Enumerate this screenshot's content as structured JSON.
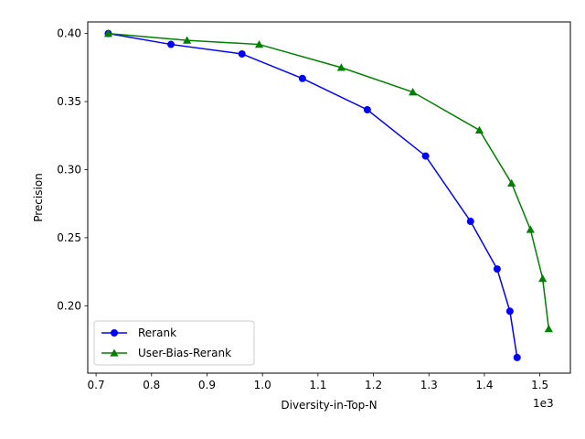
{
  "chart_data": {
    "type": "line",
    "title": "",
    "xlabel": "Diversity-in-Top-N",
    "ylabel": "Precision",
    "x_offset_label": "1e3",
    "xlim": [
      0.685,
      1.555
    ],
    "ylim": [
      0.1505,
      0.4085
    ],
    "xticks": [
      0.7,
      0.8,
      0.9,
      1.0,
      1.1,
      1.2,
      1.3,
      1.4,
      1.5
    ],
    "xtick_labels": [
      "0.7",
      "0.8",
      "0.9",
      "1.0",
      "1.1",
      "1.2",
      "1.3",
      "1.4",
      "1.5"
    ],
    "yticks": [
      0.2,
      0.25,
      0.3,
      0.35,
      0.4
    ],
    "ytick_labels": [
      "0.20",
      "0.25",
      "0.30",
      "0.35",
      "0.40"
    ],
    "grid": false,
    "legend_position": "lower-left",
    "series": [
      {
        "name": "Rerank",
        "color": "#0000ff",
        "marker": "circle",
        "x": [
          0.722,
          0.835,
          0.963,
          1.072,
          1.189,
          1.294,
          1.375,
          1.423,
          1.446,
          1.459
        ],
        "y": [
          0.4,
          0.392,
          0.385,
          0.367,
          0.344,
          0.31,
          0.262,
          0.227,
          0.196,
          0.162
        ]
      },
      {
        "name": "User-Bias-Rerank",
        "color": "#008000",
        "marker": "triangle",
        "x": [
          0.722,
          0.864,
          0.994,
          1.142,
          1.271,
          1.391,
          1.449,
          1.483,
          1.505,
          1.516
        ],
        "y": [
          0.4,
          0.395,
          0.392,
          0.375,
          0.357,
          0.329,
          0.29,
          0.256,
          0.22,
          0.183
        ]
      }
    ]
  }
}
